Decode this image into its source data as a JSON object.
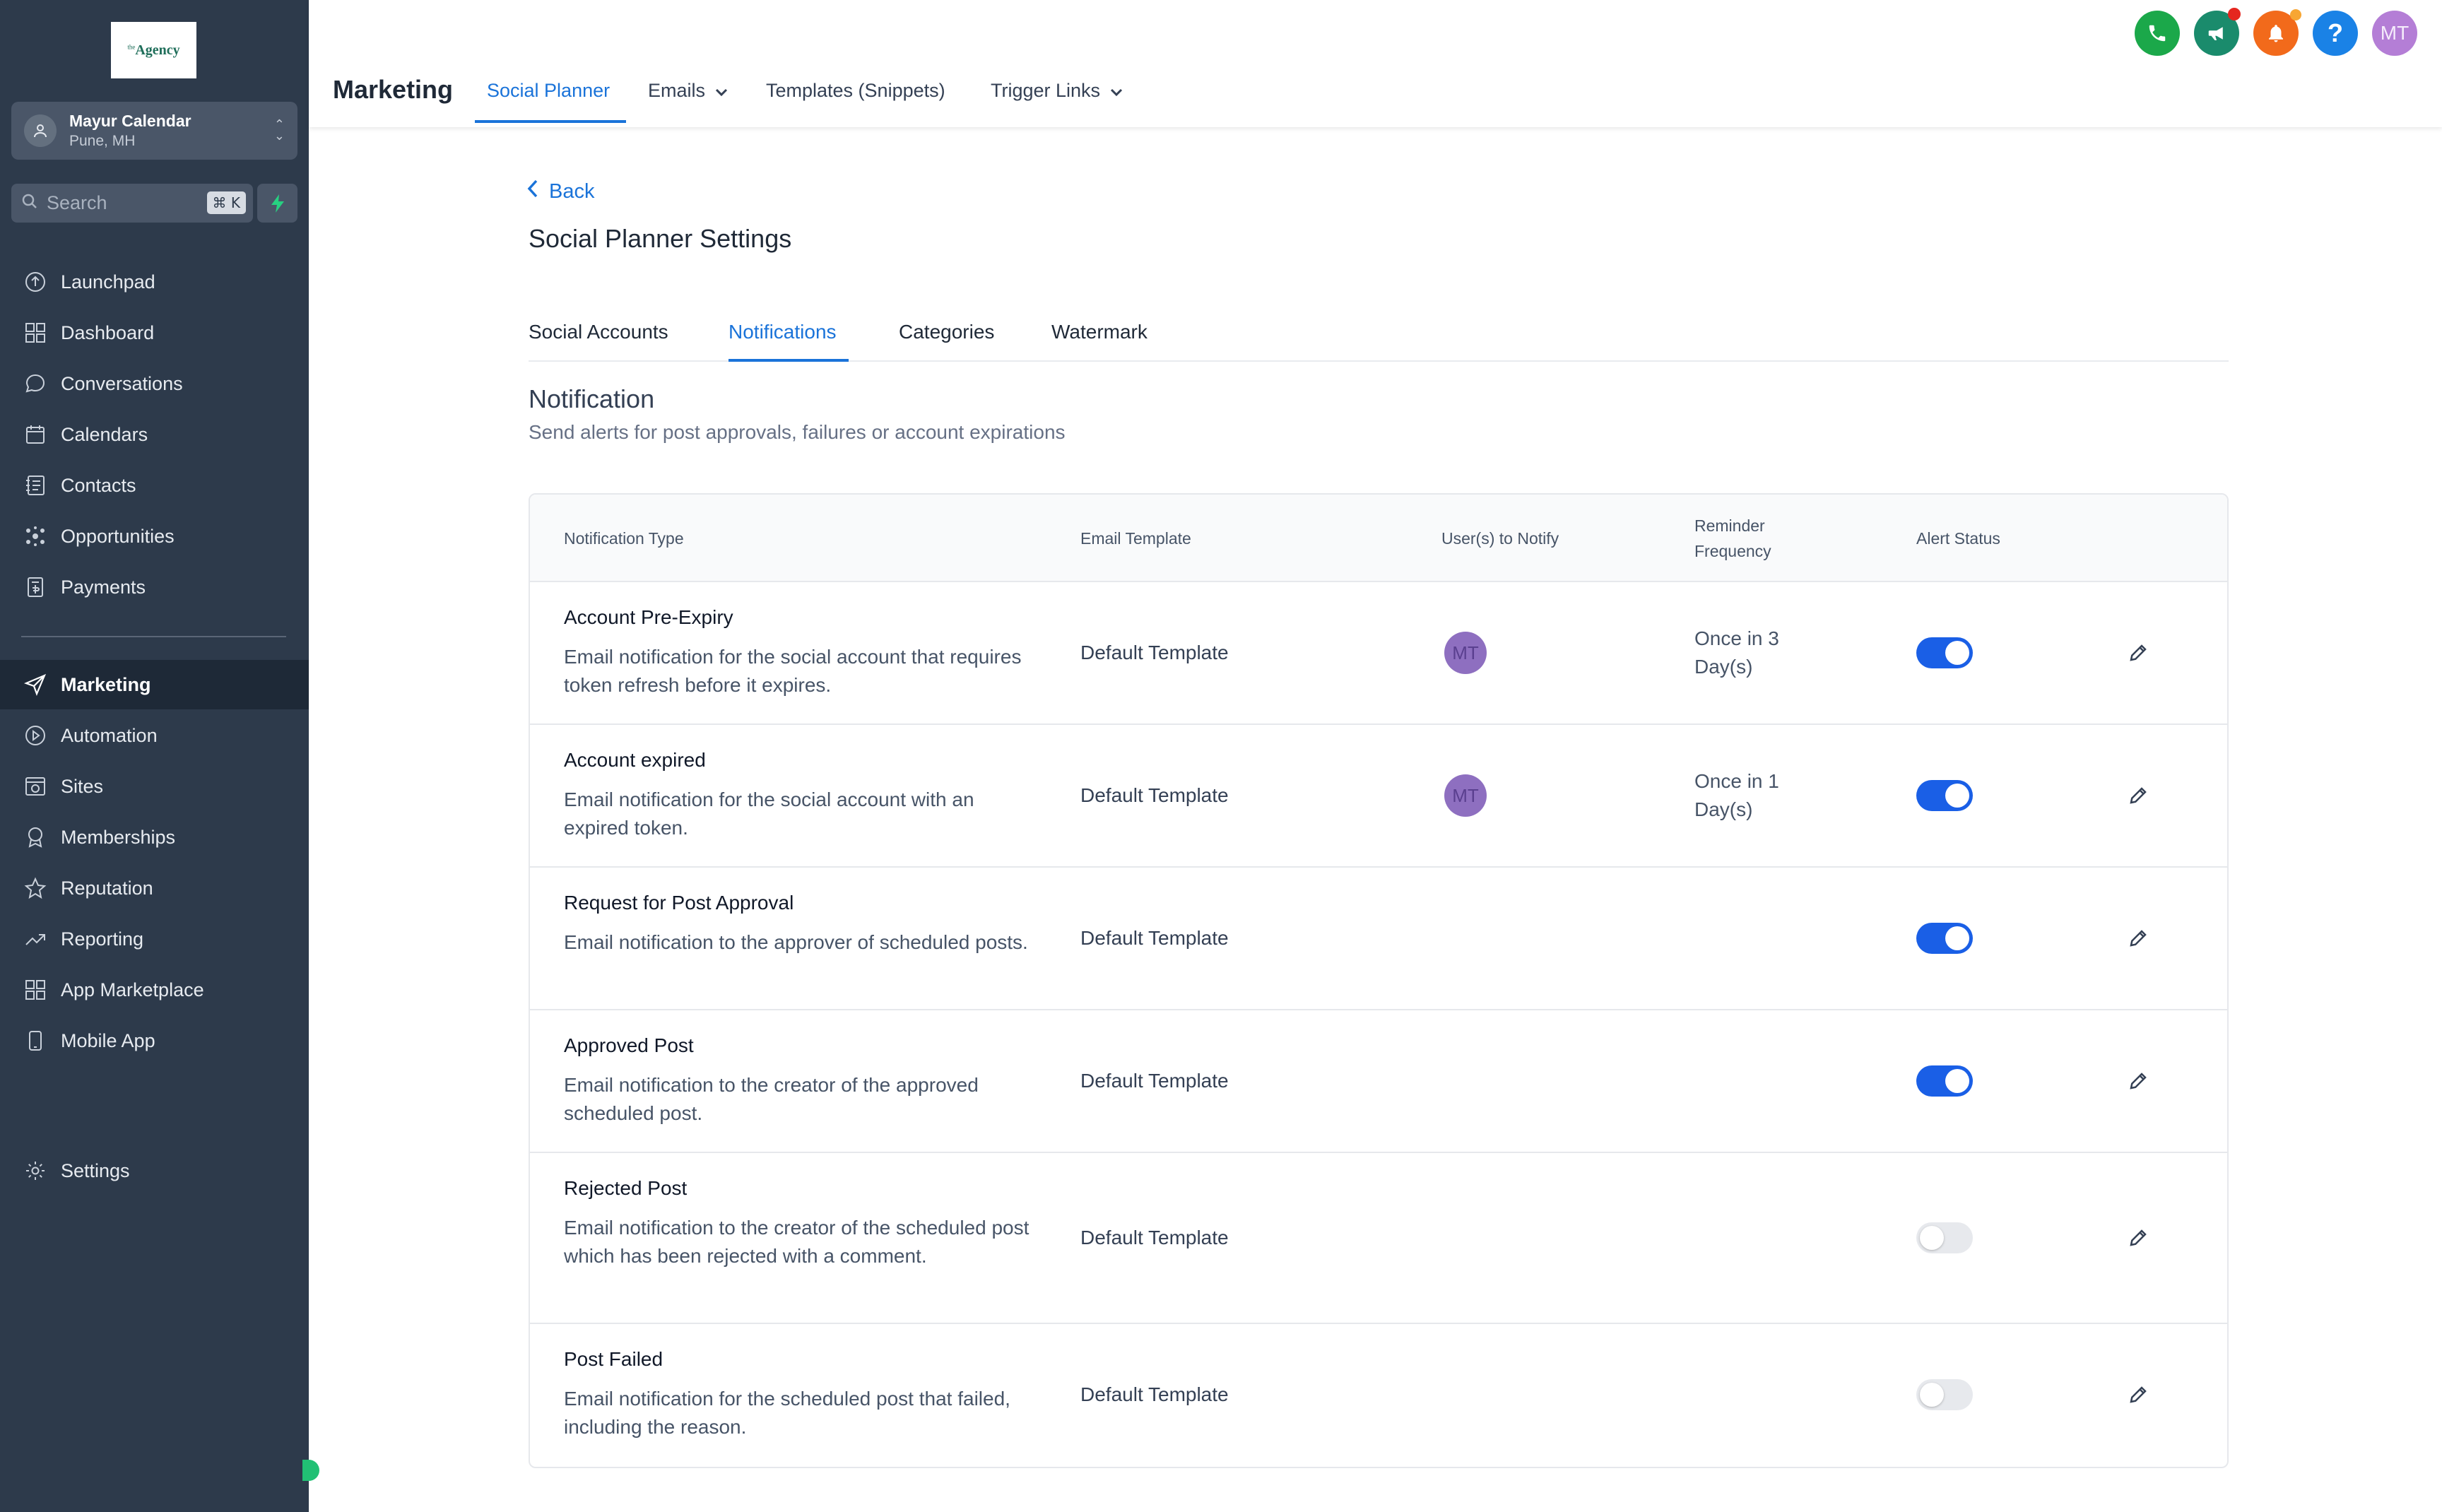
{
  "sidebar": {
    "logo": {
      "prefix": "the",
      "text": "Agency"
    },
    "account": {
      "name": "Mayur Calendar",
      "location": "Pune, MH"
    },
    "search": {
      "placeholder": "Search",
      "shortcut": "⌘ K"
    },
    "items": [
      {
        "label": "Launchpad",
        "icon": "rocket-icon"
      },
      {
        "label": "Dashboard",
        "icon": "grid-icon"
      },
      {
        "label": "Conversations",
        "icon": "chat-icon"
      },
      {
        "label": "Calendars",
        "icon": "calendar-icon"
      },
      {
        "label": "Contacts",
        "icon": "contacts-icon"
      },
      {
        "label": "Opportunities",
        "icon": "opportunities-icon"
      },
      {
        "label": "Payments",
        "icon": "payments-icon"
      },
      {
        "label": "Marketing",
        "icon": "send-icon",
        "active": true
      },
      {
        "label": "Automation",
        "icon": "automation-icon"
      },
      {
        "label": "Sites",
        "icon": "sites-icon"
      },
      {
        "label": "Memberships",
        "icon": "award-icon"
      },
      {
        "label": "Reputation",
        "icon": "star-icon"
      },
      {
        "label": "Reporting",
        "icon": "trend-icon"
      },
      {
        "label": "App Marketplace",
        "icon": "apps-icon"
      },
      {
        "label": "Mobile App",
        "icon": "mobile-icon"
      },
      {
        "label": "Settings",
        "icon": "gear-icon"
      }
    ]
  },
  "topbar": {
    "title": "Marketing",
    "tabs": [
      {
        "label": "Social Planner",
        "active": true
      },
      {
        "label": "Emails",
        "dropdown": true
      },
      {
        "label": "Templates (Snippets)"
      },
      {
        "label": "Trigger Links",
        "dropdown": true
      }
    ],
    "user_initials": "MT",
    "icon_colors": {
      "phone": "#1ba84a",
      "megaphone": "#1a8b6c",
      "bell": "#f26a1b",
      "help": "#1a82e6",
      "avatar": "#b47ed6"
    }
  },
  "page": {
    "back_label": "Back",
    "title": "Social Planner Settings",
    "tabs": [
      {
        "label": "Social Accounts"
      },
      {
        "label": "Notifications",
        "active": true
      },
      {
        "label": "Categories"
      },
      {
        "label": "Watermark"
      }
    ],
    "section_title": "Notification",
    "section_desc": "Send alerts for post approvals, failures or account expirations"
  },
  "table": {
    "headers": {
      "type": "Notification Type",
      "template": "Email Template",
      "users": "User(s) to Notify",
      "frequency_line1": "Reminder",
      "frequency_line2": "Frequency",
      "status": "Alert Status"
    },
    "rows": [
      {
        "title": "Account Pre-Expiry",
        "desc": "Email notification for the social account that requires token refresh before it expires.",
        "template": "Default Template",
        "user": "MT",
        "freq_line1": "Once in 3",
        "freq_line2": "Day(s)",
        "enabled": true
      },
      {
        "title": "Account expired",
        "desc": "Email notification for the social account with an expired token.",
        "template": "Default Template",
        "user": "MT",
        "freq_line1": "Once in 1",
        "freq_line2": "Day(s)",
        "enabled": true
      },
      {
        "title": "Request for Post Approval",
        "desc": "Email notification to the approver of scheduled posts.",
        "template": "Default Template",
        "enabled": true
      },
      {
        "title": "Approved Post",
        "desc": "Email notification to the creator of the approved scheduled post.",
        "template": "Default Template",
        "enabled": true
      },
      {
        "title": "Rejected Post",
        "desc": "Email notification to the creator of the scheduled post which has been rejected with a comment.",
        "template": "Default Template",
        "enabled": false
      },
      {
        "title": "Post Failed",
        "desc": "Email notification for the scheduled post that failed, including the reason.",
        "template": "Default Template",
        "enabled": false
      }
    ]
  }
}
